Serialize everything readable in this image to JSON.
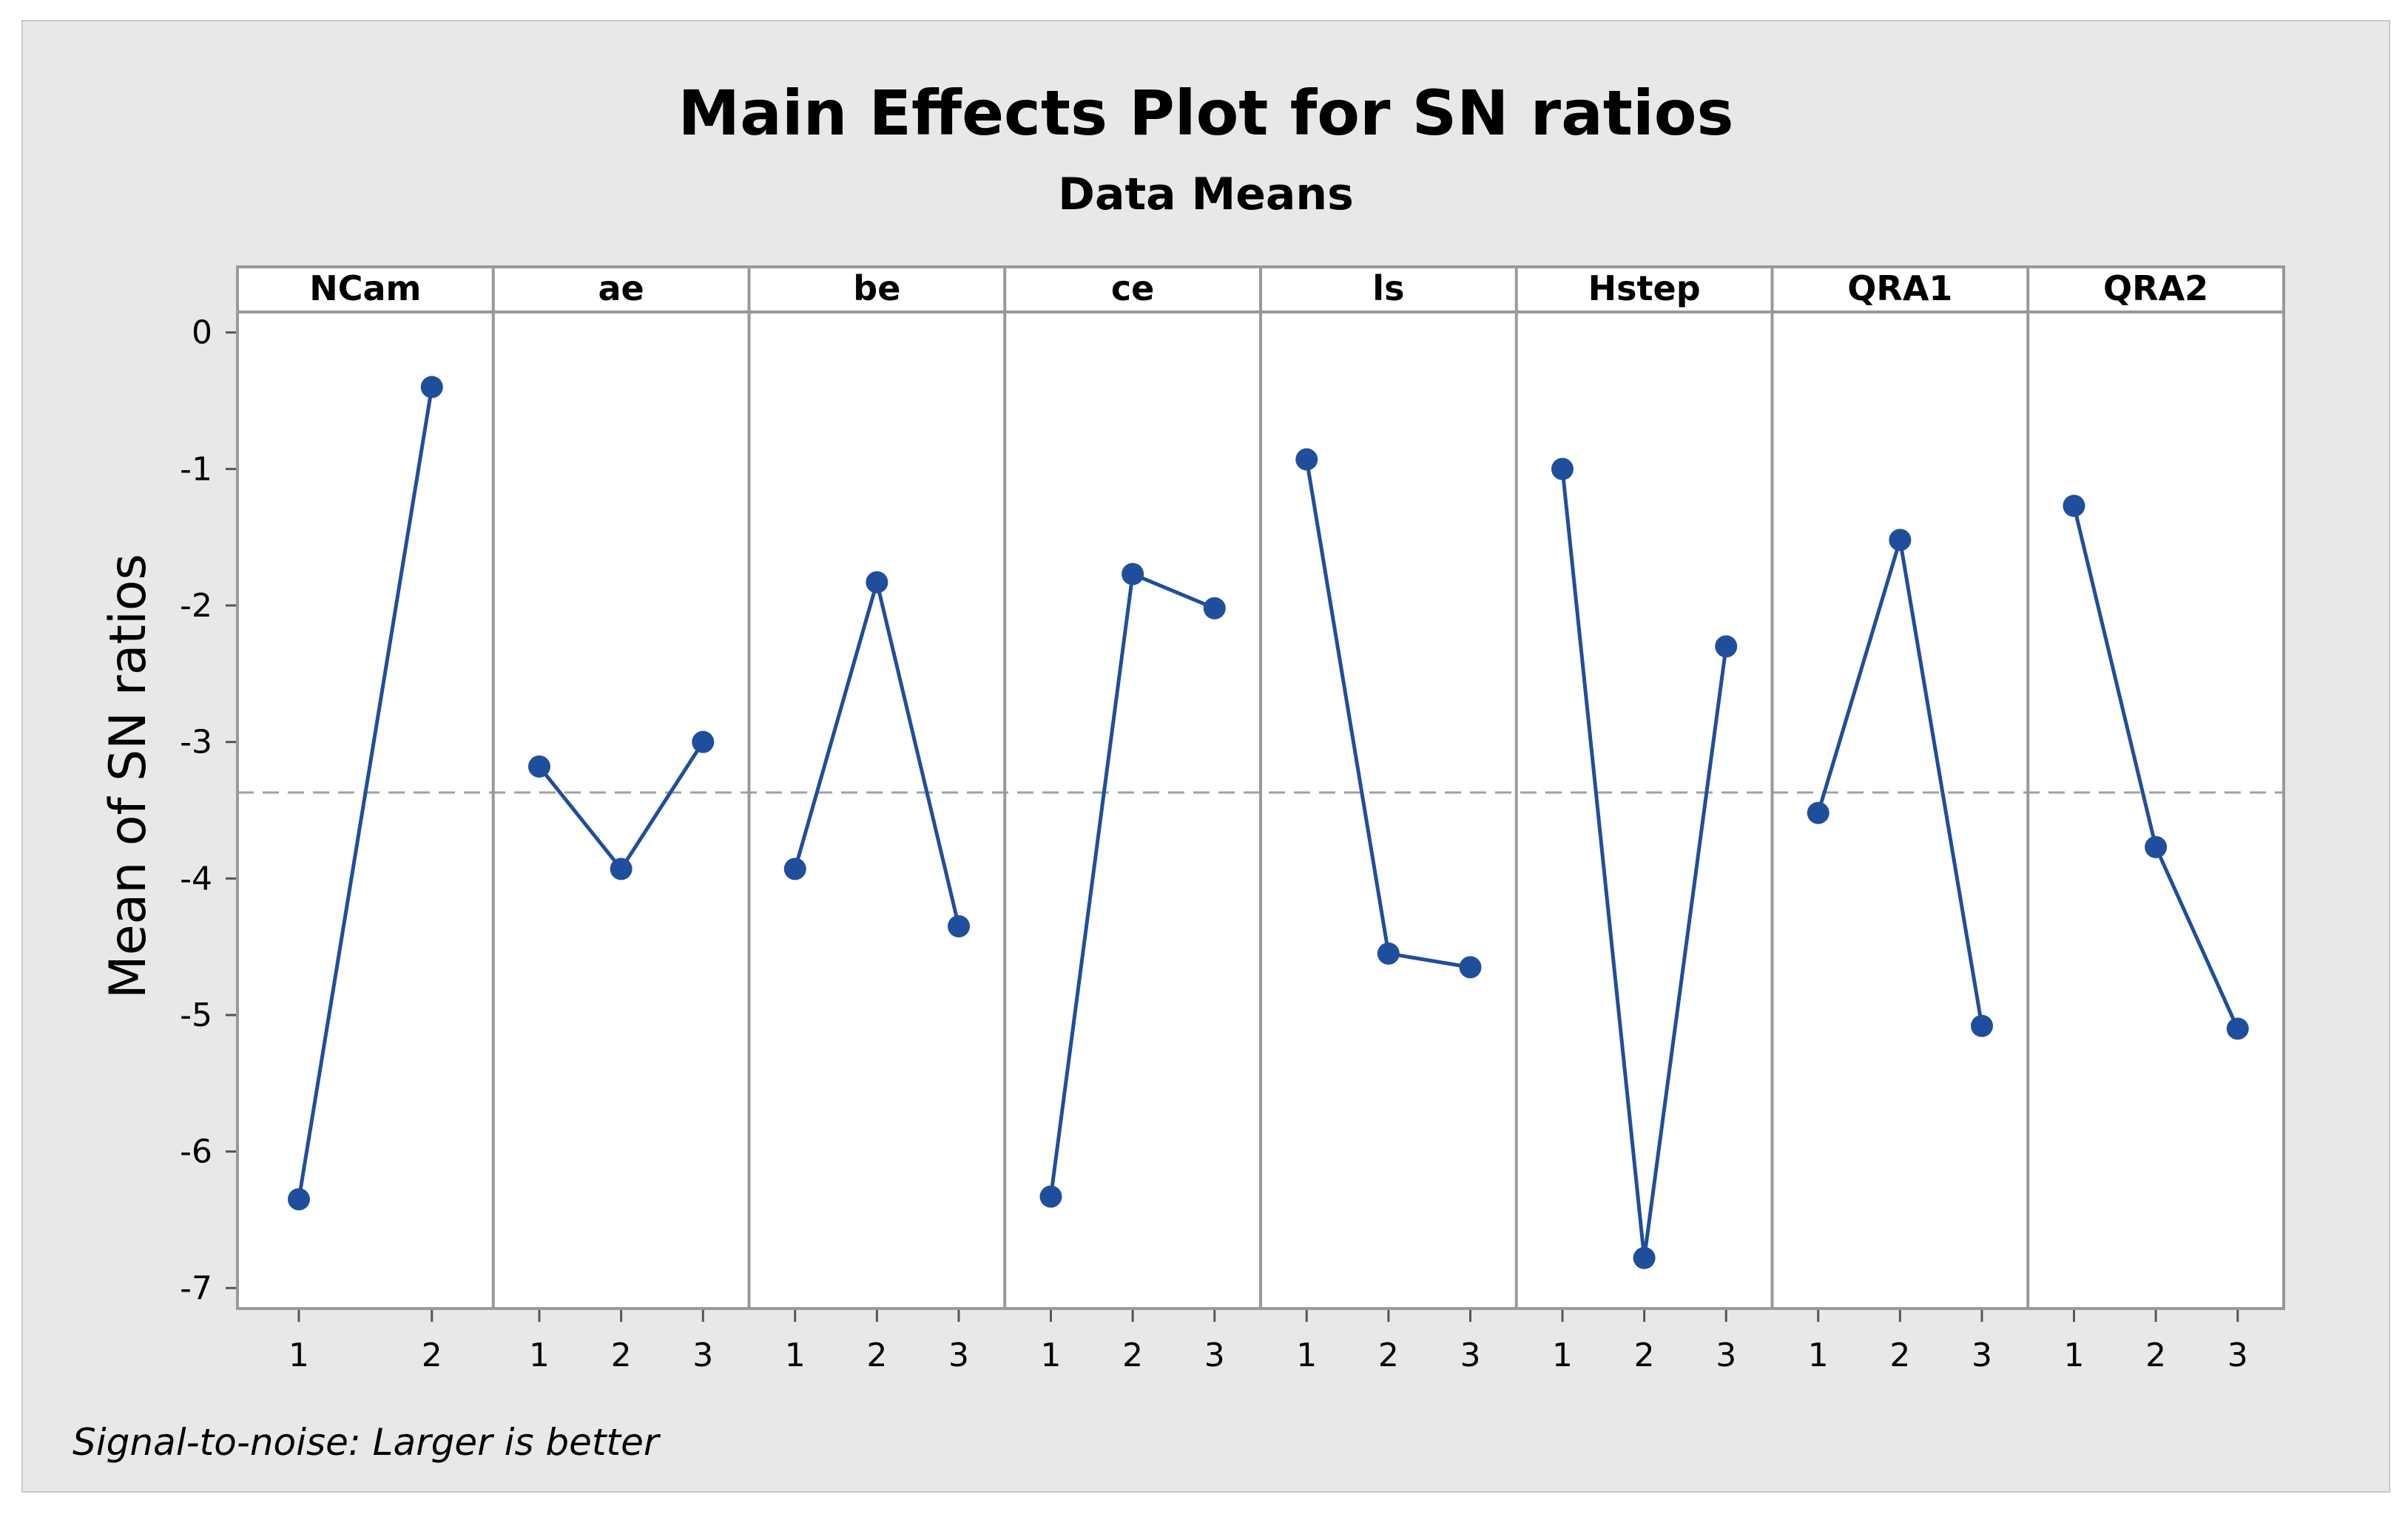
{
  "chart_data": {
    "type": "line",
    "title": "Main Effects Plot for SN ratios",
    "subtitle": "Data Means",
    "ylabel": "Mean of SN ratios",
    "ylim": [
      -7.15,
      0.15
    ],
    "yticks": [
      0,
      -1,
      -2,
      -3,
      -4,
      -5,
      -6,
      -7
    ],
    "reference_line": -3.37,
    "footnote": "Signal-to-noise: Larger is better",
    "colors": {
      "series": "#1f4e9c",
      "outer_background": "#e8e8e8",
      "panel_background": "#ffffff",
      "strip_background": "#ffffff",
      "frame": "#999999",
      "reference": "#a0a0a0"
    },
    "panels": [
      {
        "name": "NCam",
        "levels": [
          "1",
          "2"
        ],
        "values": [
          -6.35,
          -0.4
        ]
      },
      {
        "name": "ae",
        "levels": [
          "1",
          "2",
          "3"
        ],
        "values": [
          -3.18,
          -3.93,
          -3.0
        ]
      },
      {
        "name": "be",
        "levels": [
          "1",
          "2",
          "3"
        ],
        "values": [
          -3.93,
          -1.83,
          -4.35
        ]
      },
      {
        "name": "ce",
        "levels": [
          "1",
          "2",
          "3"
        ],
        "values": [
          -6.33,
          -1.77,
          -2.02
        ]
      },
      {
        "name": "ls",
        "levels": [
          "1",
          "2",
          "3"
        ],
        "values": [
          -0.93,
          -4.55,
          -4.65
        ]
      },
      {
        "name": "Hstep",
        "levels": [
          "1",
          "2",
          "3"
        ],
        "values": [
          -1.0,
          -6.78,
          -2.3
        ]
      },
      {
        "name": "QRA1",
        "levels": [
          "1",
          "2",
          "3"
        ],
        "values": [
          -3.52,
          -1.52,
          -5.08
        ]
      },
      {
        "name": "QRA2",
        "levels": [
          "1",
          "2",
          "3"
        ],
        "values": [
          -1.27,
          -3.77,
          -5.1
        ]
      }
    ]
  }
}
